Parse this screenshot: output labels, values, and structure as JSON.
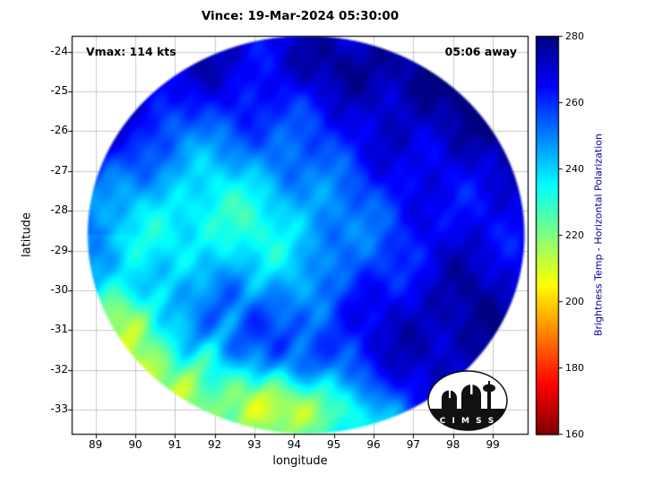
{
  "title": "Vince: 19-Mar-2024 05:30:00",
  "annotations": {
    "vmax": "Vmax: 114 kts",
    "away": "05:06 away"
  },
  "axes": {
    "xlabel": "longitude",
    "ylabel": "latitude"
  },
  "logo": {
    "text": "C I M S S"
  },
  "chart_data": {
    "type": "heatmap",
    "title": "Vince: 19-Mar-2024 05:30:00",
    "xlabel": "longitude",
    "ylabel": "latitude",
    "x_ticks": [
      89,
      90,
      91,
      92,
      93,
      94,
      95,
      96,
      97,
      98,
      99
    ],
    "y_ticks": [
      -24,
      -25,
      -26,
      -27,
      -28,
      -29,
      -30,
      -31,
      -32,
      -33
    ],
    "xlim": [
      88.4,
      99.9
    ],
    "ylim": [
      -33.63,
      -23.6
    ],
    "grid": true,
    "legend_position": "none",
    "colorbar": {
      "label": "Brightness Temp - Horizontal Polarization",
      "min": 160,
      "max": 280,
      "ticks": [
        160,
        180,
        200,
        220,
        240,
        260,
        280
      ],
      "colormap": "jet_reversed"
    },
    "swath": {
      "center_lon": 94.3,
      "center_lat": -28.6,
      "radius_lon": 5.53,
      "radius_lat": 5.03,
      "background_k": 257
    },
    "regions": [
      {
        "lon": 97.4,
        "lat": -25.6,
        "slon": 1.9,
        "slat": 1.5,
        "dk": 15
      },
      {
        "lon": 94.8,
        "lat": -24.3,
        "slon": 1.6,
        "slat": 0.7,
        "dk": 9
      },
      {
        "lon": 98.7,
        "lat": -30.2,
        "slon": 1.1,
        "slat": 1.7,
        "dk": 11
      },
      {
        "lon": 96.6,
        "lat": -30.3,
        "slon": 1.6,
        "slat": 1.1,
        "dk": 10
      },
      {
        "lon": 97.6,
        "lat": -31.8,
        "slon": 1.3,
        "slat": 1.0,
        "dk": 9
      },
      {
        "lon": 92.9,
        "lat": -28.2,
        "slon": 1.7,
        "slat": 1.0,
        "dk": -15
      },
      {
        "lon": 94.4,
        "lat": -29.6,
        "slon": 1.6,
        "slat": 0.9,
        "dk": -9
      },
      {
        "lon": 90.4,
        "lat": -28.7,
        "slon": 1.4,
        "slat": 1.0,
        "dk": -11
      },
      {
        "lon": 91.7,
        "lat": -27.2,
        "slon": 2.2,
        "slat": 1.6,
        "dk": -8
      },
      {
        "lon": 91.0,
        "lat": -32.6,
        "slon": 1.4,
        "slat": 0.9,
        "dk": -18
      },
      {
        "lon": 89.7,
        "lat": -30.7,
        "slon": 0.6,
        "slat": 0.6,
        "dk": -30
      },
      {
        "lon": 93.9,
        "lat": -32.8,
        "slon": 1.0,
        "slat": 0.6,
        "dk": -30
      },
      {
        "lon": 90.2,
        "lat": -31.9,
        "slon": 0.9,
        "slat": 0.7,
        "dk": -14
      },
      {
        "lon": 95.2,
        "lat": -33.3,
        "slon": 1.2,
        "slat": 0.5,
        "dk": -14
      },
      {
        "lon": 91.6,
        "lat": -24.9,
        "slon": 1.8,
        "slat": 0.9,
        "dk": 8
      },
      {
        "lon": 89.3,
        "lat": -26.5,
        "slon": 0.8,
        "slat": 1.0,
        "dk": 6
      }
    ]
  }
}
